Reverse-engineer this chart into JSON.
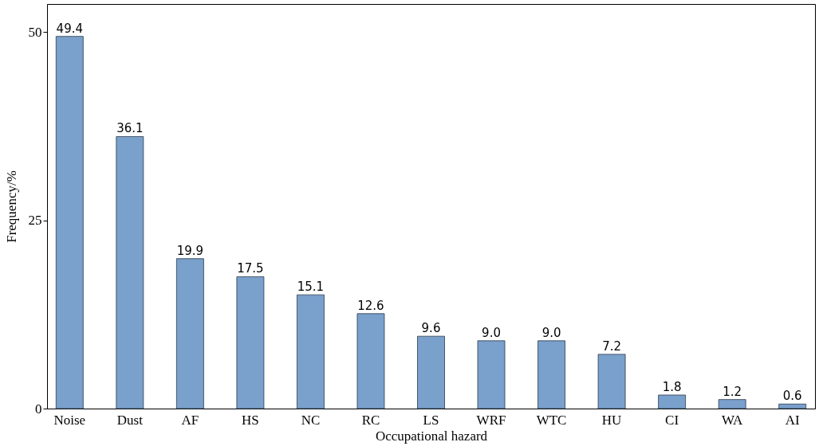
{
  "chart_data": {
    "type": "bar",
    "xlabel": "Occupational hazard",
    "ylabel": "Frequency/%",
    "categories": [
      "Noise",
      "Dust",
      "AF",
      "HS",
      "NC",
      "RC",
      "LS",
      "WRF",
      "WTC",
      "HU",
      "CI",
      "WA",
      "AI"
    ],
    "values": [
      49.4,
      36.1,
      19.9,
      17.5,
      15.1,
      12.6,
      9.6,
      9.0,
      9.0,
      7.2,
      1.8,
      1.2,
      0.6
    ],
    "color": "#7aa0cc",
    "ylim": [
      0,
      53.7
    ],
    "yticks": [
      0,
      25,
      50
    ],
    "grid": false,
    "value_labels": [
      "49.4",
      "36.1",
      "19.9",
      "17.5",
      "15.1",
      "12.6",
      "9.6",
      "9.0",
      "9.0",
      "7.2",
      "1.8",
      "1.2",
      "0.6"
    ]
  }
}
